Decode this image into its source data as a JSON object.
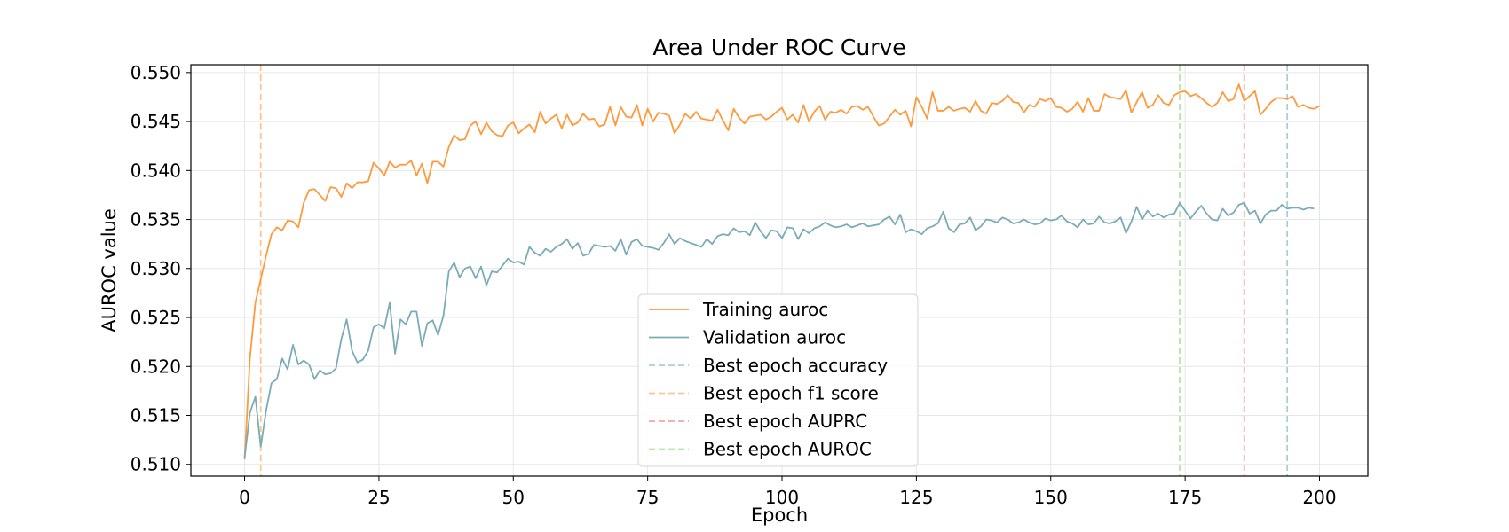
{
  "chart_data": {
    "type": "line",
    "title": "Area Under ROC Curve",
    "xlabel": "Epoch",
    "ylabel": "AUROC value",
    "xlim": [
      -10,
      209
    ],
    "ylim": [
      0.5088,
      0.5508
    ],
    "xticks": [
      0,
      25,
      50,
      75,
      100,
      125,
      150,
      175,
      200
    ],
    "yticks": [
      0.51,
      0.515,
      0.52,
      0.525,
      0.53,
      0.535,
      0.54,
      0.545,
      0.55
    ],
    "grid": true,
    "legend_position": "lower-center",
    "series": [
      {
        "name": "Training auroc",
        "color": "#ff9a3c",
        "x_start": 0,
        "values": [
          0.5105,
          0.5209,
          0.5265,
          0.5289,
          0.5313,
          0.5335,
          0.5342,
          0.5339,
          0.5349,
          0.5348,
          0.5342,
          0.5367,
          0.538,
          0.5381,
          0.5375,
          0.5369,
          0.5383,
          0.5382,
          0.5373,
          0.5387,
          0.5382,
          0.5388,
          0.5388,
          0.5389,
          0.5408,
          0.5402,
          0.5395,
          0.5409,
          0.5403,
          0.5406,
          0.5406,
          0.541,
          0.5395,
          0.5407,
          0.5387,
          0.5409,
          0.5409,
          0.5404,
          0.5424,
          0.5436,
          0.5431,
          0.5432,
          0.5446,
          0.545,
          0.5437,
          0.5449,
          0.544,
          0.5436,
          0.5435,
          0.5446,
          0.5449,
          0.5438,
          0.5443,
          0.5447,
          0.5439,
          0.546,
          0.5448,
          0.5453,
          0.5457,
          0.5443,
          0.5457,
          0.5446,
          0.5449,
          0.5458,
          0.5452,
          0.5453,
          0.5445,
          0.5447,
          0.5465,
          0.5446,
          0.5465,
          0.5455,
          0.5454,
          0.5467,
          0.5446,
          0.5463,
          0.545,
          0.5459,
          0.5458,
          0.5456,
          0.5438,
          0.5447,
          0.5458,
          0.5453,
          0.546,
          0.5453,
          0.5452,
          0.5451,
          0.5462,
          0.5451,
          0.5441,
          0.5463,
          0.5454,
          0.5448,
          0.5455,
          0.5456,
          0.5457,
          0.5452,
          0.5455,
          0.546,
          0.5464,
          0.5452,
          0.5457,
          0.5449,
          0.5467,
          0.545,
          0.546,
          0.5466,
          0.5452,
          0.546,
          0.5459,
          0.5462,
          0.5458,
          0.5465,
          0.5466,
          0.5462,
          0.5465,
          0.5455,
          0.5446,
          0.5448,
          0.5455,
          0.5462,
          0.5457,
          0.5461,
          0.5445,
          0.5475,
          0.5465,
          0.5453,
          0.548,
          0.5461,
          0.5461,
          0.5465,
          0.5461,
          0.5463,
          0.5464,
          0.546,
          0.5471,
          0.5461,
          0.5458,
          0.5469,
          0.5468,
          0.5471,
          0.5477,
          0.547,
          0.5469,
          0.5459,
          0.5467,
          0.5465,
          0.5473,
          0.5471,
          0.5474,
          0.5465,
          0.5464,
          0.546,
          0.5463,
          0.547,
          0.546,
          0.5474,
          0.5461,
          0.5461,
          0.5478,
          0.5475,
          0.5474,
          0.5473,
          0.5482,
          0.5459,
          0.547,
          0.548,
          0.5464,
          0.5467,
          0.5477,
          0.5469,
          0.5467,
          0.5477,
          0.548,
          0.5481,
          0.5476,
          0.5478,
          0.5474,
          0.5469,
          0.5465,
          0.5469,
          0.548,
          0.5471,
          0.5473,
          0.5488,
          0.5471,
          0.5476,
          0.5481,
          0.5457,
          0.5463,
          0.547,
          0.5474,
          0.5474,
          0.5473,
          0.5476,
          0.5465,
          0.5467,
          0.5464,
          0.5463,
          0.5466
        ]
      },
      {
        "name": "Validation auroc",
        "color": "#7aacb8",
        "x_start": 0,
        "values": [
          0.5107,
          0.5153,
          0.5169,
          0.5118,
          0.5155,
          0.5183,
          0.5187,
          0.5208,
          0.5197,
          0.5222,
          0.5202,
          0.5206,
          0.5202,
          0.5187,
          0.5196,
          0.5192,
          0.5193,
          0.5198,
          0.5228,
          0.5248,
          0.5216,
          0.5204,
          0.5207,
          0.5216,
          0.524,
          0.5243,
          0.5239,
          0.5265,
          0.5213,
          0.5248,
          0.5243,
          0.5256,
          0.5256,
          0.5221,
          0.5244,
          0.5247,
          0.5232,
          0.5252,
          0.5297,
          0.5306,
          0.5291,
          0.53,
          0.5302,
          0.529,
          0.5302,
          0.5283,
          0.5297,
          0.5296,
          0.5303,
          0.531,
          0.5306,
          0.5307,
          0.5304,
          0.5322,
          0.5316,
          0.5313,
          0.532,
          0.5317,
          0.5322,
          0.5325,
          0.533,
          0.532,
          0.5326,
          0.5313,
          0.5315,
          0.5324,
          0.5323,
          0.5322,
          0.5323,
          0.5318,
          0.533,
          0.5314,
          0.5327,
          0.533,
          0.5323,
          0.5322,
          0.5321,
          0.5319,
          0.5326,
          0.5335,
          0.5325,
          0.5331,
          0.5328,
          0.5326,
          0.5324,
          0.5322,
          0.533,
          0.5325,
          0.5333,
          0.5335,
          0.5334,
          0.5341,
          0.5337,
          0.5338,
          0.5334,
          0.5347,
          0.5338,
          0.5331,
          0.5339,
          0.5338,
          0.5331,
          0.5342,
          0.5341,
          0.533,
          0.534,
          0.5336,
          0.5341,
          0.5343,
          0.5347,
          0.5344,
          0.5342,
          0.5343,
          0.5345,
          0.5342,
          0.5344,
          0.5346,
          0.5343,
          0.5344,
          0.5345,
          0.535,
          0.5353,
          0.5345,
          0.5355,
          0.5337,
          0.534,
          0.5338,
          0.5335,
          0.5341,
          0.5343,
          0.5346,
          0.5358,
          0.5341,
          0.5337,
          0.5345,
          0.5346,
          0.5352,
          0.5339,
          0.5343,
          0.535,
          0.5349,
          0.5347,
          0.5352,
          0.535,
          0.5346,
          0.5347,
          0.535,
          0.5347,
          0.5345,
          0.5346,
          0.5351,
          0.5349,
          0.535,
          0.5354,
          0.5348,
          0.5346,
          0.5342,
          0.535,
          0.5345,
          0.5346,
          0.5353,
          0.5347,
          0.5346,
          0.5348,
          0.5352,
          0.5336,
          0.5348,
          0.5363,
          0.535,
          0.5359,
          0.5353,
          0.5356,
          0.5352,
          0.5355,
          0.5356,
          0.5367,
          0.5359,
          0.5351,
          0.5358,
          0.5364,
          0.5356,
          0.535,
          0.5349,
          0.5361,
          0.5354,
          0.5357,
          0.5365,
          0.5367,
          0.5356,
          0.5359,
          0.5346,
          0.5355,
          0.5359,
          0.5359,
          0.5365,
          0.5361,
          0.5362,
          0.5362,
          0.536,
          0.5362,
          0.5361
        ]
      }
    ],
    "vlines": [
      {
        "name": "Best epoch accuracy",
        "x": 194,
        "color": "#a9cfd6"
      },
      {
        "name": "Best epoch f1 score",
        "x": 3,
        "color": "#ffc48f"
      },
      {
        "name": "Best epoch AUPRC",
        "x": 186,
        "color": "#f4a7a0"
      },
      {
        "name": "Best epoch AUROC",
        "x": 174,
        "color": "#b8e6a4"
      }
    ]
  }
}
